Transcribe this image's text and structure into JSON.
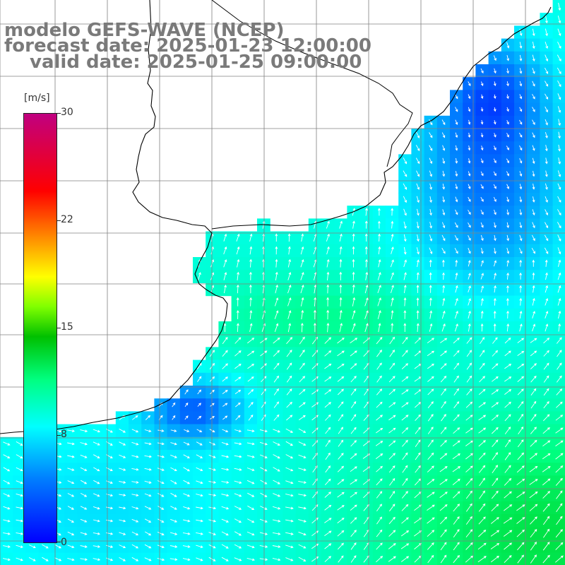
{
  "title": {
    "line1": "modelo GEFS-WAVE (NCEP)",
    "line2": "forecast date: 2025-01-23 12:00:00",
    "line3": "valid date: 2025-01-25 09:00:00"
  },
  "colorbar": {
    "unit": "[m/s]",
    "min": 0,
    "max": 30,
    "ticks": [
      "30",
      "22",
      "15",
      "8",
      "0"
    ],
    "tick_values": [
      30,
      22,
      15,
      8,
      0
    ],
    "colors": [
      "#0000ff",
      "#0080ff",
      "#00ffff",
      "#00ff80",
      "#00c000",
      "#80ff00",
      "#ffff00",
      "#ff8000",
      "#ff0000",
      "#c00080"
    ]
  },
  "map": {
    "land_color": "#ffffff",
    "grid_color": "#808080",
    "coast_color": "#000000",
    "arrow_color": "#ffffff",
    "graticule": "on"
  }
}
